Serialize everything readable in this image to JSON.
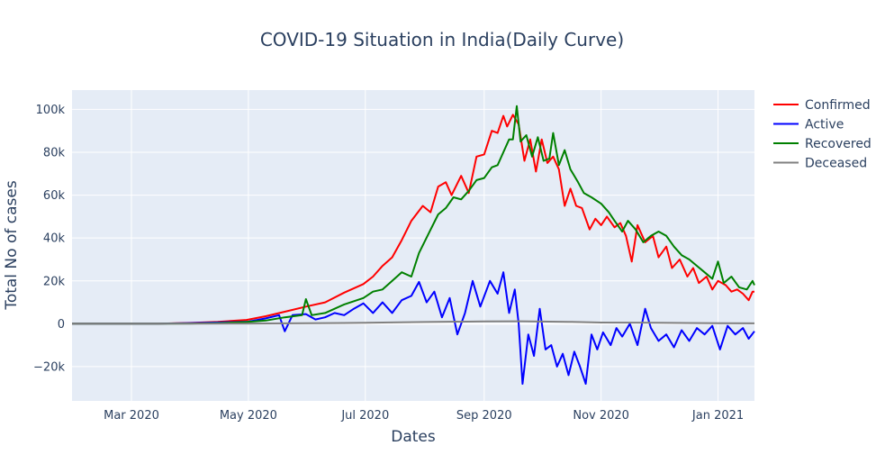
{
  "chart_data": {
    "type": "line",
    "title": "COVID-19 Situation in India(Daily Curve)",
    "xlabel": "Dates",
    "ylabel": "Total No of cases",
    "xlim": [
      "2020-01-30",
      "2021-01-20"
    ],
    "ylim": [
      -36000,
      109000
    ],
    "grid": true,
    "legend_position": "right",
    "x_ticks": [
      {
        "date": "2020-03-01",
        "label": "Mar 2020"
      },
      {
        "date": "2020-05-01",
        "label": "May 2020"
      },
      {
        "date": "2020-07-01",
        "label": "Jul 2020"
      },
      {
        "date": "2020-09-01",
        "label": "Sep 2020"
      },
      {
        "date": "2020-11-01",
        "label": "Nov 2020"
      },
      {
        "date": "2021-01-01",
        "label": "Jan 2021"
      }
    ],
    "y_ticks": [
      {
        "value": -20000,
        "label": "−20k"
      },
      {
        "value": 0,
        "label": "0"
      },
      {
        "value": 20000,
        "label": "20k"
      },
      {
        "value": 40000,
        "label": "40k"
      },
      {
        "value": 60000,
        "label": "60k"
      },
      {
        "value": 80000,
        "label": "80k"
      },
      {
        "value": 100000,
        "label": "100k"
      }
    ],
    "series": [
      {
        "name": "Confirmed",
        "color": "#ff0000",
        "points": [
          [
            "2020-01-30",
            0
          ],
          [
            "2020-03-01",
            0
          ],
          [
            "2020-03-15",
            50
          ],
          [
            "2020-04-01",
            400
          ],
          [
            "2020-04-15",
            900
          ],
          [
            "2020-04-30",
            1800
          ],
          [
            "2020-05-10",
            3500
          ],
          [
            "2020-05-20",
            5600
          ],
          [
            "2020-05-31",
            8000
          ],
          [
            "2020-06-10",
            10000
          ],
          [
            "2020-06-20",
            14500
          ],
          [
            "2020-06-30",
            18500
          ],
          [
            "2020-07-05",
            22000
          ],
          [
            "2020-07-10",
            27000
          ],
          [
            "2020-07-15",
            31000
          ],
          [
            "2020-07-20",
            39000
          ],
          [
            "2020-07-25",
            48000
          ],
          [
            "2020-07-31",
            55000
          ],
          [
            "2020-08-04",
            52000
          ],
          [
            "2020-08-08",
            64000
          ],
          [
            "2020-08-12",
            66000
          ],
          [
            "2020-08-15",
            60000
          ],
          [
            "2020-08-20",
            69000
          ],
          [
            "2020-08-24",
            61000
          ],
          [
            "2020-08-28",
            78000
          ],
          [
            "2020-09-01",
            79000
          ],
          [
            "2020-09-05",
            90000
          ],
          [
            "2020-09-08",
            89000
          ],
          [
            "2020-09-11",
            97000
          ],
          [
            "2020-09-13",
            92000
          ],
          [
            "2020-09-16",
            97500
          ],
          [
            "2020-09-19",
            93000
          ],
          [
            "2020-09-22",
            76000
          ],
          [
            "2020-09-25",
            86000
          ],
          [
            "2020-09-28",
            71000
          ],
          [
            "2020-10-01",
            86000
          ],
          [
            "2020-10-04",
            75000
          ],
          [
            "2020-10-07",
            78000
          ],
          [
            "2020-10-10",
            72000
          ],
          [
            "2020-10-13",
            55000
          ],
          [
            "2020-10-16",
            63000
          ],
          [
            "2020-10-19",
            55000
          ],
          [
            "2020-10-22",
            54000
          ],
          [
            "2020-10-26",
            44000
          ],
          [
            "2020-10-29",
            49000
          ],
          [
            "2020-11-01",
            46000
          ],
          [
            "2020-11-04",
            50000
          ],
          [
            "2020-11-08",
            45000
          ],
          [
            "2020-11-11",
            47000
          ],
          [
            "2020-11-14",
            41000
          ],
          [
            "2020-11-17",
            29000
          ],
          [
            "2020-11-20",
            46000
          ],
          [
            "2020-11-24",
            38000
          ],
          [
            "2020-11-28",
            41000
          ],
          [
            "2020-12-01",
            31000
          ],
          [
            "2020-12-05",
            36000
          ],
          [
            "2020-12-08",
            26000
          ],
          [
            "2020-12-12",
            30000
          ],
          [
            "2020-12-16",
            22000
          ],
          [
            "2020-12-19",
            26000
          ],
          [
            "2020-12-22",
            19000
          ],
          [
            "2020-12-26",
            22000
          ],
          [
            "2020-12-29",
            16000
          ],
          [
            "2021-01-01",
            20000
          ],
          [
            "2021-01-05",
            18000
          ],
          [
            "2021-01-08",
            15000
          ],
          [
            "2021-01-11",
            16000
          ],
          [
            "2021-01-14",
            14000
          ],
          [
            "2021-01-17",
            11000
          ],
          [
            "2021-01-19",
            15000
          ],
          [
            "2021-01-20",
            15000
          ]
        ]
      },
      {
        "name": "Active",
        "color": "#0000ff",
        "points": [
          [
            "2020-01-30",
            0
          ],
          [
            "2020-03-15",
            0
          ],
          [
            "2020-04-01",
            300
          ],
          [
            "2020-04-15",
            600
          ],
          [
            "2020-05-01",
            1000
          ],
          [
            "2020-05-10",
            2500
          ],
          [
            "2020-05-17",
            4000
          ],
          [
            "2020-05-20",
            -3500
          ],
          [
            "2020-05-24",
            4000
          ],
          [
            "2020-05-31",
            4500
          ],
          [
            "2020-06-05",
            2000
          ],
          [
            "2020-06-10",
            3000
          ],
          [
            "2020-06-15",
            5000
          ],
          [
            "2020-06-20",
            4000
          ],
          [
            "2020-06-25",
            7000
          ],
          [
            "2020-06-30",
            9500
          ],
          [
            "2020-07-05",
            5000
          ],
          [
            "2020-07-10",
            10000
          ],
          [
            "2020-07-15",
            5000
          ],
          [
            "2020-07-20",
            11000
          ],
          [
            "2020-07-25",
            13000
          ],
          [
            "2020-07-29",
            19500
          ],
          [
            "2020-08-02",
            10000
          ],
          [
            "2020-08-06",
            15000
          ],
          [
            "2020-08-10",
            3000
          ],
          [
            "2020-08-14",
            12000
          ],
          [
            "2020-08-18",
            -5000
          ],
          [
            "2020-08-22",
            5000
          ],
          [
            "2020-08-26",
            20000
          ],
          [
            "2020-08-30",
            8000
          ],
          [
            "2020-09-04",
            20000
          ],
          [
            "2020-09-08",
            14000
          ],
          [
            "2020-09-11",
            24000
          ],
          [
            "2020-09-14",
            5000
          ],
          [
            "2020-09-17",
            16000
          ],
          [
            "2020-09-19",
            0
          ],
          [
            "2020-09-21",
            -28000
          ],
          [
            "2020-09-24",
            -5000
          ],
          [
            "2020-09-27",
            -15000
          ],
          [
            "2020-09-30",
            7000
          ],
          [
            "2020-10-03",
            -12000
          ],
          [
            "2020-10-06",
            -10000
          ],
          [
            "2020-10-09",
            -20000
          ],
          [
            "2020-10-12",
            -14000
          ],
          [
            "2020-10-15",
            -24000
          ],
          [
            "2020-10-18",
            -13000
          ],
          [
            "2020-10-21",
            -20000
          ],
          [
            "2020-10-24",
            -28000
          ],
          [
            "2020-10-27",
            -5000
          ],
          [
            "2020-10-30",
            -12000
          ],
          [
            "2020-11-02",
            -4000
          ],
          [
            "2020-11-06",
            -10000
          ],
          [
            "2020-11-09",
            -2000
          ],
          [
            "2020-11-12",
            -6000
          ],
          [
            "2020-11-16",
            0
          ],
          [
            "2020-11-20",
            -10000
          ],
          [
            "2020-11-24",
            7000
          ],
          [
            "2020-11-27",
            -2000
          ],
          [
            "2020-12-01",
            -8000
          ],
          [
            "2020-12-05",
            -5000
          ],
          [
            "2020-12-09",
            -11000
          ],
          [
            "2020-12-13",
            -3000
          ],
          [
            "2020-12-17",
            -8000
          ],
          [
            "2020-12-21",
            -2000
          ],
          [
            "2020-12-25",
            -5000
          ],
          [
            "2020-12-29",
            -1000
          ],
          [
            "2021-01-02",
            -12000
          ],
          [
            "2021-01-06",
            -1000
          ],
          [
            "2021-01-10",
            -5000
          ],
          [
            "2021-01-14",
            -2000
          ],
          [
            "2021-01-17",
            -7000
          ],
          [
            "2021-01-20",
            -3500
          ]
        ]
      },
      {
        "name": "Recovered",
        "color": "#008000",
        "points": [
          [
            "2020-01-30",
            0
          ],
          [
            "2020-03-15",
            0
          ],
          [
            "2020-04-01",
            100
          ],
          [
            "2020-04-15",
            300
          ],
          [
            "2020-04-30",
            800
          ],
          [
            "2020-05-10",
            1500
          ],
          [
            "2020-05-20",
            3000
          ],
          [
            "2020-05-29",
            4000
          ],
          [
            "2020-05-31",
            11500
          ],
          [
            "2020-06-03",
            4000
          ],
          [
            "2020-06-10",
            5000
          ],
          [
            "2020-06-20",
            9000
          ],
          [
            "2020-06-30",
            12000
          ],
          [
            "2020-07-05",
            15000
          ],
          [
            "2020-07-10",
            16000
          ],
          [
            "2020-07-15",
            20000
          ],
          [
            "2020-07-20",
            24000
          ],
          [
            "2020-07-25",
            22000
          ],
          [
            "2020-07-29",
            33000
          ],
          [
            "2020-08-03",
            42000
          ],
          [
            "2020-08-08",
            51000
          ],
          [
            "2020-08-12",
            54000
          ],
          [
            "2020-08-16",
            59000
          ],
          [
            "2020-08-20",
            58000
          ],
          [
            "2020-08-24",
            62000
          ],
          [
            "2020-08-28",
            67000
          ],
          [
            "2020-09-01",
            68000
          ],
          [
            "2020-09-05",
            73000
          ],
          [
            "2020-09-08",
            74000
          ],
          [
            "2020-09-11",
            80000
          ],
          [
            "2020-09-14",
            86000
          ],
          [
            "2020-09-16",
            86000
          ],
          [
            "2020-09-18",
            101500
          ],
          [
            "2020-09-20",
            85000
          ],
          [
            "2020-09-23",
            88000
          ],
          [
            "2020-09-26",
            78000
          ],
          [
            "2020-09-29",
            87000
          ],
          [
            "2020-10-02",
            76000
          ],
          [
            "2020-10-05",
            77000
          ],
          [
            "2020-10-07",
            89000
          ],
          [
            "2020-10-10",
            74000
          ],
          [
            "2020-10-13",
            81000
          ],
          [
            "2020-10-16",
            72000
          ],
          [
            "2020-10-20",
            66000
          ],
          [
            "2020-10-23",
            61000
          ],
          [
            "2020-10-27",
            59000
          ],
          [
            "2020-11-01",
            56000
          ],
          [
            "2020-11-05",
            52000
          ],
          [
            "2020-11-08",
            48000
          ],
          [
            "2020-11-12",
            43000
          ],
          [
            "2020-11-15",
            48000
          ],
          [
            "2020-11-19",
            44000
          ],
          [
            "2020-11-23",
            38000
          ],
          [
            "2020-11-27",
            41000
          ],
          [
            "2020-12-01",
            43000
          ],
          [
            "2020-12-05",
            41000
          ],
          [
            "2020-12-09",
            36000
          ],
          [
            "2020-12-13",
            32000
          ],
          [
            "2020-12-17",
            30000
          ],
          [
            "2020-12-21",
            27000
          ],
          [
            "2020-12-25",
            24000
          ],
          [
            "2020-12-29",
            21000
          ],
          [
            "2021-01-01",
            29000
          ],
          [
            "2021-01-04",
            19000
          ],
          [
            "2021-01-08",
            22000
          ],
          [
            "2021-01-12",
            17000
          ],
          [
            "2021-01-16",
            16000
          ],
          [
            "2021-01-19",
            20000
          ],
          [
            "2021-01-20",
            18000
          ]
        ]
      },
      {
        "name": "Deceased",
        "color": "#808080",
        "points": [
          [
            "2020-01-30",
            0
          ],
          [
            "2020-04-01",
            0
          ],
          [
            "2020-05-01",
            100
          ],
          [
            "2020-06-01",
            250
          ],
          [
            "2020-07-01",
            450
          ],
          [
            "2020-08-01",
            800
          ],
          [
            "2020-09-01",
            1050
          ],
          [
            "2020-09-20",
            1150
          ],
          [
            "2020-10-15",
            900
          ],
          [
            "2020-11-01",
            550
          ],
          [
            "2020-12-01",
            450
          ],
          [
            "2021-01-01",
            250
          ],
          [
            "2021-01-20",
            180
          ]
        ]
      }
    ]
  }
}
